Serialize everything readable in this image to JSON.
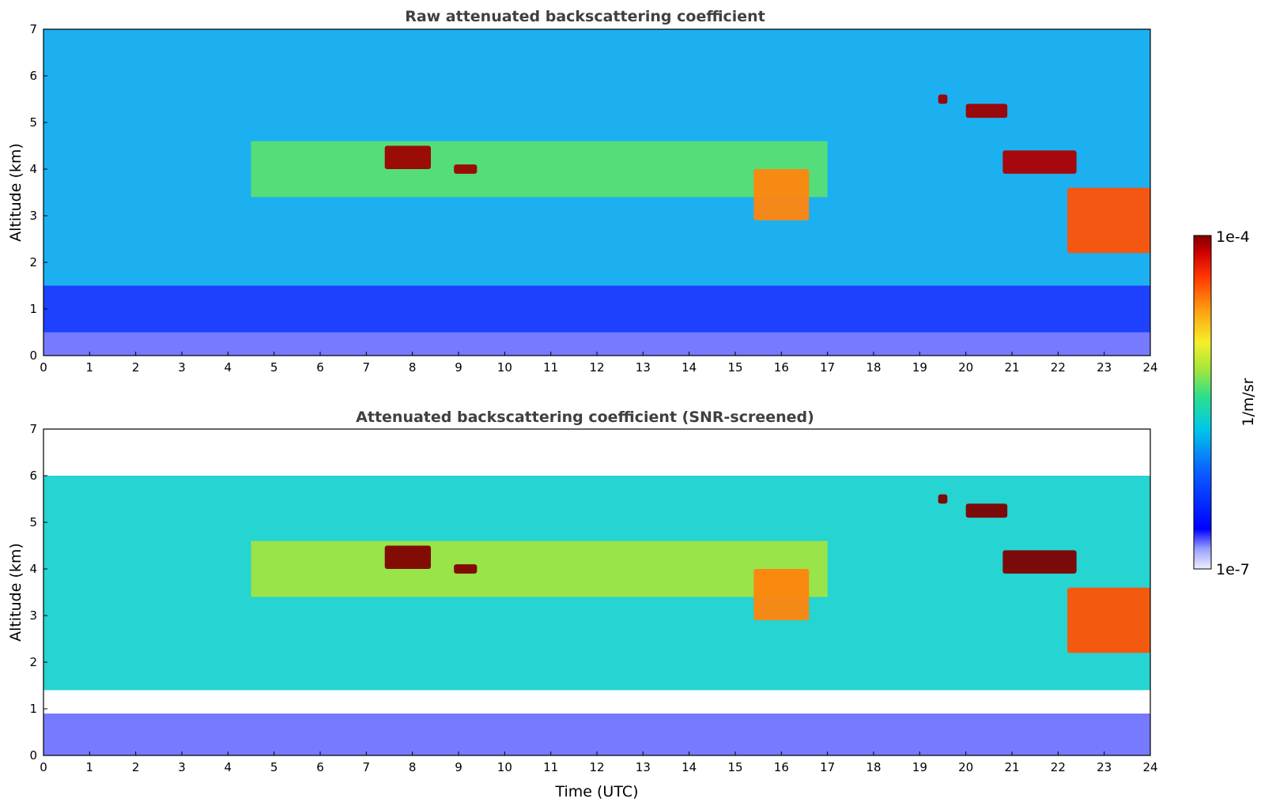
{
  "chart_data": [
    {
      "type": "heatmap",
      "title": "Raw attenuated backscattering coefficient",
      "xlabel": "",
      "ylabel": "Altitude (km)",
      "xlim": [
        0,
        24
      ],
      "ylim": [
        0,
        7
      ],
      "x_ticks": [
        "0",
        "1",
        "2",
        "3",
        "4",
        "5",
        "6",
        "7",
        "8",
        "9",
        "10",
        "11",
        "12",
        "13",
        "14",
        "15",
        "16",
        "17",
        "18",
        "19",
        "20",
        "21",
        "22",
        "23",
        "24"
      ],
      "y_ticks": [
        "0",
        "1",
        "2",
        "3",
        "4",
        "5",
        "6",
        "7"
      ],
      "colorbar": {
        "min_label": "1e-7",
        "max_label": "1e-4",
        "label": "1/m/sr",
        "scale": "log"
      },
      "regions": [
        {
          "kind": "surface_layer",
          "x": [
            0,
            24
          ],
          "y": [
            0,
            0.5
          ],
          "level": 0.08
        },
        {
          "kind": "boundary_noise",
          "x": [
            0,
            24
          ],
          "y": [
            0.5,
            1.5
          ],
          "level": 0.2
        },
        {
          "kind": "background",
          "x": [
            0,
            24
          ],
          "y": [
            1.5,
            7
          ],
          "level": 0.38
        },
        {
          "kind": "aerosol_layer",
          "x": [
            4.5,
            17.0
          ],
          "y": [
            3.4,
            4.6
          ],
          "level": 0.55
        },
        {
          "kind": "cloud",
          "x": [
            7.4,
            8.4
          ],
          "y": [
            4.0,
            4.5
          ],
          "level": 0.98
        },
        {
          "kind": "cloud",
          "x": [
            8.9,
            9.4
          ],
          "y": [
            3.9,
            4.1
          ],
          "level": 0.98
        },
        {
          "kind": "cloud",
          "x": [
            15.4,
            16.6
          ],
          "y": [
            2.9,
            4.0
          ],
          "level": 0.8
        },
        {
          "kind": "cloud",
          "x": [
            19.4,
            19.6
          ],
          "y": [
            5.4,
            5.6
          ],
          "level": 0.98
        },
        {
          "kind": "cloud",
          "x": [
            20.0,
            20.9
          ],
          "y": [
            5.1,
            5.4
          ],
          "level": 0.98
        },
        {
          "kind": "cloud",
          "x": [
            20.8,
            22.4
          ],
          "y": [
            3.9,
            4.4
          ],
          "level": 0.97
        },
        {
          "kind": "cloud",
          "x": [
            22.2,
            24.0
          ],
          "y": [
            2.2,
            3.6
          ],
          "level": 0.85
        }
      ]
    },
    {
      "type": "heatmap",
      "title": "Attenuated backscattering coefficient (SNR-screened)",
      "xlabel": "Time (UTC)",
      "ylabel": "Altitude (km)",
      "xlim": [
        0,
        24
      ],
      "ylim": [
        0,
        7
      ],
      "x_ticks": [
        "0",
        "1",
        "2",
        "3",
        "4",
        "5",
        "6",
        "7",
        "8",
        "9",
        "10",
        "11",
        "12",
        "13",
        "14",
        "15",
        "16",
        "17",
        "18",
        "19",
        "20",
        "21",
        "22",
        "23",
        "24"
      ],
      "y_ticks": [
        "0",
        "1",
        "2",
        "3",
        "4",
        "5",
        "6",
        "7"
      ],
      "colorbar": {
        "min_label": "1e-7",
        "max_label": "1e-4",
        "label": "1/m/sr",
        "scale": "log"
      },
      "regions": [
        {
          "kind": "surface_layer",
          "x": [
            0,
            24
          ],
          "y": [
            0,
            0.9
          ],
          "level": 0.08
        },
        {
          "kind": "screened_gap",
          "x": [
            0,
            24
          ],
          "y": [
            0.9,
            1.4
          ],
          "level": 0.0
        },
        {
          "kind": "background",
          "x": [
            0,
            24
          ],
          "y": [
            1.4,
            6
          ],
          "level": 0.45
        },
        {
          "kind": "aerosol_layer",
          "x": [
            4.5,
            17.0
          ],
          "y": [
            3.4,
            4.6
          ],
          "level": 0.6
        },
        {
          "kind": "cloud",
          "x": [
            7.4,
            8.4
          ],
          "y": [
            4.0,
            4.5
          ],
          "level": 1.0
        },
        {
          "kind": "cloud",
          "x": [
            8.9,
            9.4
          ],
          "y": [
            3.9,
            4.1
          ],
          "level": 1.0
        },
        {
          "kind": "cloud",
          "x": [
            15.4,
            16.6
          ],
          "y": [
            2.9,
            4.0
          ],
          "level": 0.8
        },
        {
          "kind": "cloud",
          "x": [
            19.4,
            19.6
          ],
          "y": [
            5.4,
            5.6
          ],
          "level": 1.0
        },
        {
          "kind": "cloud",
          "x": [
            20.0,
            20.9
          ],
          "y": [
            5.1,
            5.4
          ],
          "level": 1.0
        },
        {
          "kind": "cloud",
          "x": [
            20.8,
            22.4
          ],
          "y": [
            3.9,
            4.4
          ],
          "level": 1.0
        },
        {
          "kind": "cloud",
          "x": [
            22.2,
            24.0
          ],
          "y": [
            2.2,
            3.6
          ],
          "level": 0.85
        }
      ]
    }
  ]
}
